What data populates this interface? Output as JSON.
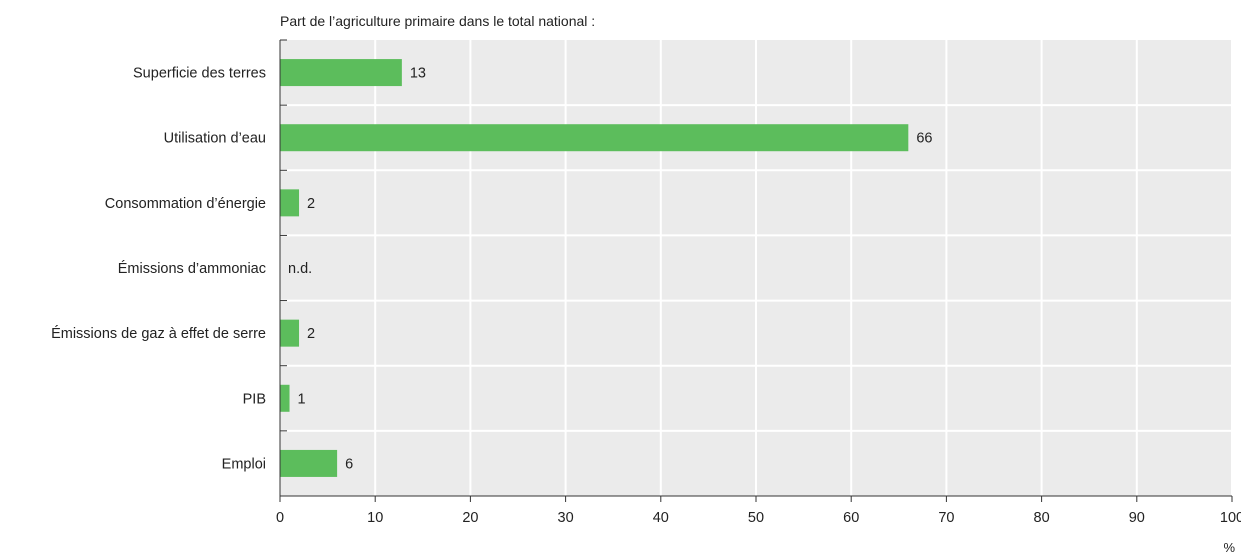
{
  "chart_data": {
    "type": "bar",
    "orientation": "horizontal",
    "title": "Part de l’agriculture primaire dans le total national :",
    "xlabel": "%",
    "ylabel": "",
    "xlim": [
      0,
      100
    ],
    "xticks": [
      0,
      10,
      20,
      30,
      40,
      50,
      60,
      70,
      80,
      90,
      100
    ],
    "grid": true,
    "bar_color": "#5cbd5c",
    "plot_background": "#ebebeb",
    "categories": [
      "Superficie des terres",
      "Utilisation d’eau",
      "Consommation d’énergie",
      "Émissions d’ammoniac",
      "Émissions de gaz à effet de serre",
      "PIB",
      "Emploi"
    ],
    "values": [
      12.8,
      66,
      2,
      null,
      2,
      1,
      6
    ],
    "data_labels": [
      "13",
      "66",
      "2",
      "n.d.",
      "2",
      "1",
      "6"
    ]
  }
}
